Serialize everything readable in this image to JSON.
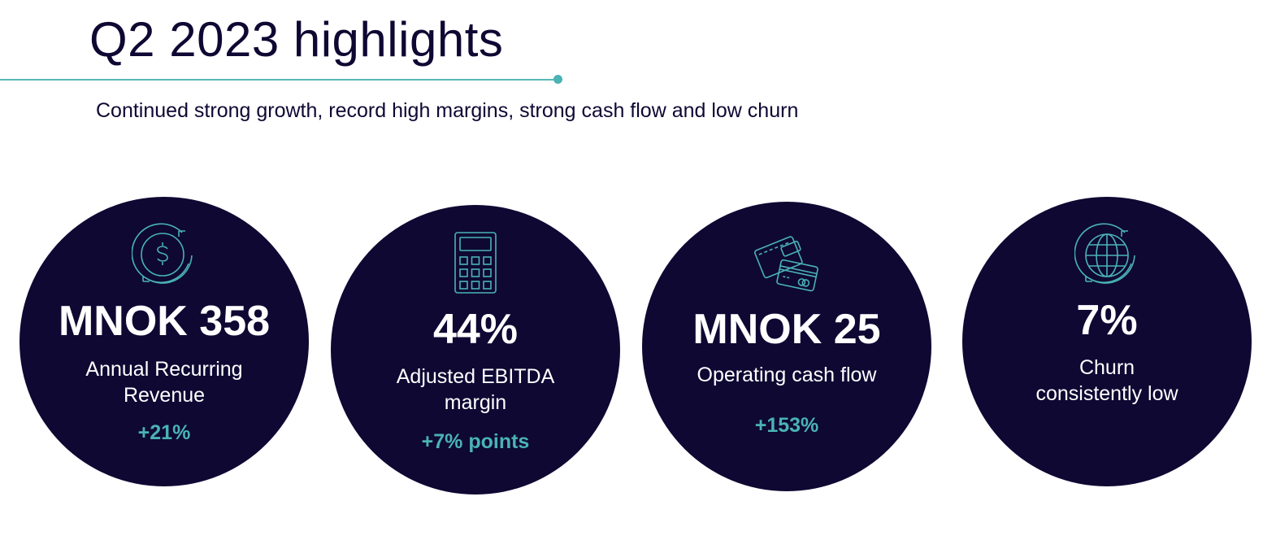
{
  "header": {
    "title": "Q2 2023 highlights",
    "subtitle": "Continued strong growth, record high margins, strong cash flow and low churn"
  },
  "colors": {
    "navy": "#0e0833",
    "teal": "#4ab3b3"
  },
  "kpis": [
    {
      "icon": "dollar-cycle-icon",
      "value": "MNOK 358",
      "label_lines": [
        "Annual Recurring",
        "Revenue"
      ],
      "change": "+21%"
    },
    {
      "icon": "calculator-icon",
      "value": "44%",
      "label_lines": [
        "Adjusted EBITDA",
        "margin"
      ],
      "change": "+7% points"
    },
    {
      "icon": "wallet-cards-icon",
      "value": "MNOK 25",
      "label_lines": [
        "Operating cash flow"
      ],
      "change": "+153%"
    },
    {
      "icon": "globe-cycle-icon",
      "value": "7%",
      "label_lines": [
        "Churn",
        "consistently low"
      ]
    }
  ]
}
